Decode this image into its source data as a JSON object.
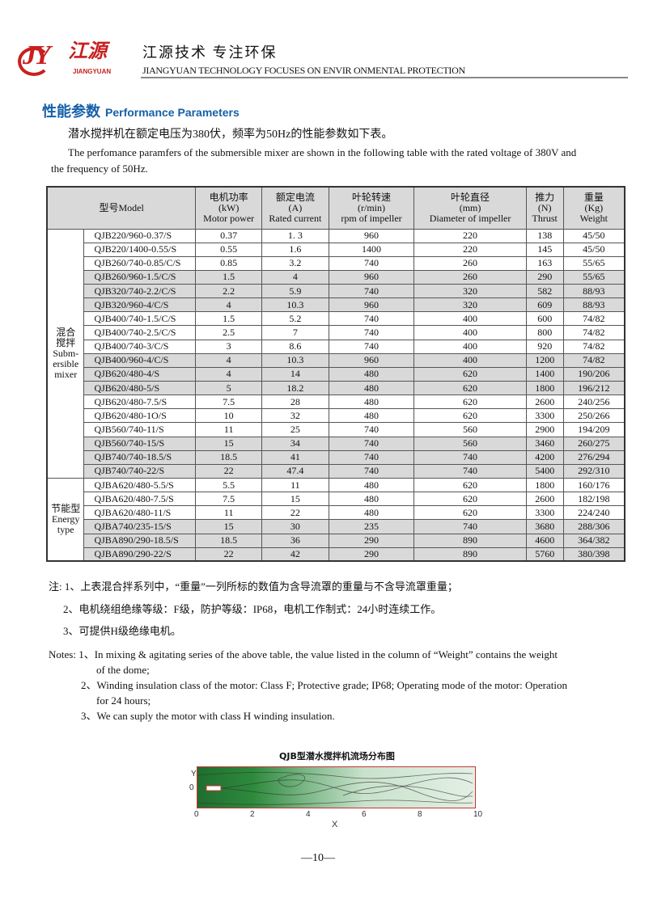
{
  "header": {
    "logo_letters": "JY",
    "logo_cn": "江源",
    "logo_en": "JIANGYUAN",
    "slogan_cn": "江源技术 专注环保",
    "slogan_en": "JIANGYUAN TECHNOLOGY FOCUSES ON ENVIR ONMENTAL PROTECTION",
    "brand_color": "#c8201f"
  },
  "section": {
    "title_cn": "性能参数",
    "title_en": "Performance Parameters",
    "title_color": "#1560a8"
  },
  "intro": {
    "cn": "潜水搅拌机在额定电压为380伏，频率为50Hz的性能参数如下表。",
    "en1": "The perfomance paramfers of  the submersible mixer are shown in the following table with the rated voltage of  380V and",
    "en2": "the frequency of 50Hz."
  },
  "table": {
    "headers": [
      "型号Model",
      "电机功率\n(kW)\nMotor power",
      "额定电流\n(A)\nRated current",
      "叶轮转速\n(r/min)\nrpm of impeller",
      "叶轮直径\n(mm)\nDiameter of impeller",
      "推力\n(N)\nThrust",
      "重量\n(Kg)\nWeight"
    ],
    "groups": [
      {
        "label": "混合\n搅拌\nSubm-\nersible\nmixer",
        "rows": [
          [
            "QJB220/960-0.37/S",
            "0.37",
            "1. 3",
            "960",
            "220",
            "138",
            "45/50",
            false
          ],
          [
            "QJB220/1400-0.55/S",
            "0.55",
            "1.6",
            "1400",
            "220",
            "145",
            "45/50",
            false
          ],
          [
            "QJB260/740-0.85/C/S",
            "0.85",
            "3.2",
            "740",
            "260",
            "163",
            "55/65",
            false
          ],
          [
            "QJB260/960-1.5/C/S",
            "1.5",
            "4",
            "960",
            "260",
            "290",
            "55/65",
            true
          ],
          [
            "QJB320/740-2.2/C/S",
            "2.2",
            "5.9",
            "740",
            "320",
            "582",
            "88/93",
            true
          ],
          [
            "QJB320/960-4/C/S",
            "4",
            "10.3",
            "960",
            "320",
            "609",
            "88/93",
            true
          ],
          [
            "QJB400/740-1.5/C/S",
            "1.5",
            "5.2",
            "740",
            "400",
            "600",
            "74/82",
            false
          ],
          [
            "QJB400/740-2.5/C/S",
            "2.5",
            "7",
            "740",
            "400",
            "800",
            "74/82",
            false
          ],
          [
            "QJB400/740-3/C/S",
            "3",
            "8.6",
            "740",
            "400",
            "920",
            "74/82",
            false
          ],
          [
            "QJB400/960-4/C/S",
            "4",
            "10.3",
            "960",
            "400",
            "1200",
            "74/82",
            true
          ],
          [
            "QJB620/480-4/S",
            "4",
            "14",
            "480",
            "620",
            "1400",
            "190/206",
            true
          ],
          [
            "QJB620/480-5/S",
            "5",
            "18.2",
            "480",
            "620",
            "1800",
            "196/212",
            true
          ],
          [
            "QJB620/480-7.5/S",
            "7.5",
            "28",
            "480",
            "620",
            "2600",
            "240/256",
            false
          ],
          [
            "QJB620/480-1O/S",
            "10",
            "32",
            "480",
            "620",
            "3300",
            "250/266",
            false
          ],
          [
            "QJB560/740-11/S",
            "11",
            "25",
            "740",
            "560",
            "2900",
            "194/209",
            false
          ],
          [
            "QJB560/740-15/S",
            "15",
            "34",
            "740",
            "560",
            "3460",
            "260/275",
            true
          ],
          [
            "QJB740/740-18.5/S",
            "18.5",
            "41",
            "740",
            "740",
            "4200",
            "276/294",
            true
          ],
          [
            "QJB740/740-22/S",
            "22",
            "47.4",
            "740",
            "740",
            "5400",
            "292/310",
            true
          ]
        ]
      },
      {
        "label": "节能型\nEnergy\ntype",
        "rows": [
          [
            "QJBA620/480-5.5/S",
            "5.5",
            "11",
            "480",
            "620",
            "1800",
            "160/176",
            false
          ],
          [
            "QJBA620/480-7.5/S",
            "7.5",
            "15",
            "480",
            "620",
            "2600",
            "182/198",
            false
          ],
          [
            "QJBA620/480-11/S",
            "11",
            "22",
            "480",
            "620",
            "3300",
            "224/240",
            false
          ],
          [
            "QJBA740/235-15/S",
            "15",
            "30",
            "235",
            "740",
            "3680",
            "288/306",
            true
          ],
          [
            "QJBA890/290-18.5/S",
            "18.5",
            "36",
            "290",
            "890",
            "4600",
            "364/382",
            true
          ],
          [
            "QJBA890/290-22/S",
            "22",
            "42",
            "290",
            "890",
            "5760",
            "380/398",
            true
          ]
        ]
      }
    ]
  },
  "notes_cn": [
    "注: 1、上表混合拌系列中，“重量”一列所标的数值为含导流罩的重量与不含导流罩重量；",
    "2、电机绕组绝缘等级：F级，防护等级：IP68，电机工作制式：24小时连续工作。",
    "3、可提供H级绝缘电机。"
  ],
  "notes_en": [
    "Notes: 1、In mixing &  agitating series of the above table, the value listed in the column of “Weight”  contains the weight",
    "of the  dome;",
    "2、Winding  insulation  class  of  the  motor: Class  F; Protective  grade;  IP68; Operating  mode  of  the  motor: Operation",
    "for  24  hours;",
    "3、We can suply the motor with class H winding insulation."
  ],
  "figure": {
    "title": "QJB型潜水搅拌机流场分布图",
    "ylabel": "Y",
    "xlabel": "X",
    "y_tick": "0",
    "x_ticks": [
      "0",
      "2",
      "4",
      "6",
      "8",
      "10"
    ]
  },
  "page_number": "—10—"
}
